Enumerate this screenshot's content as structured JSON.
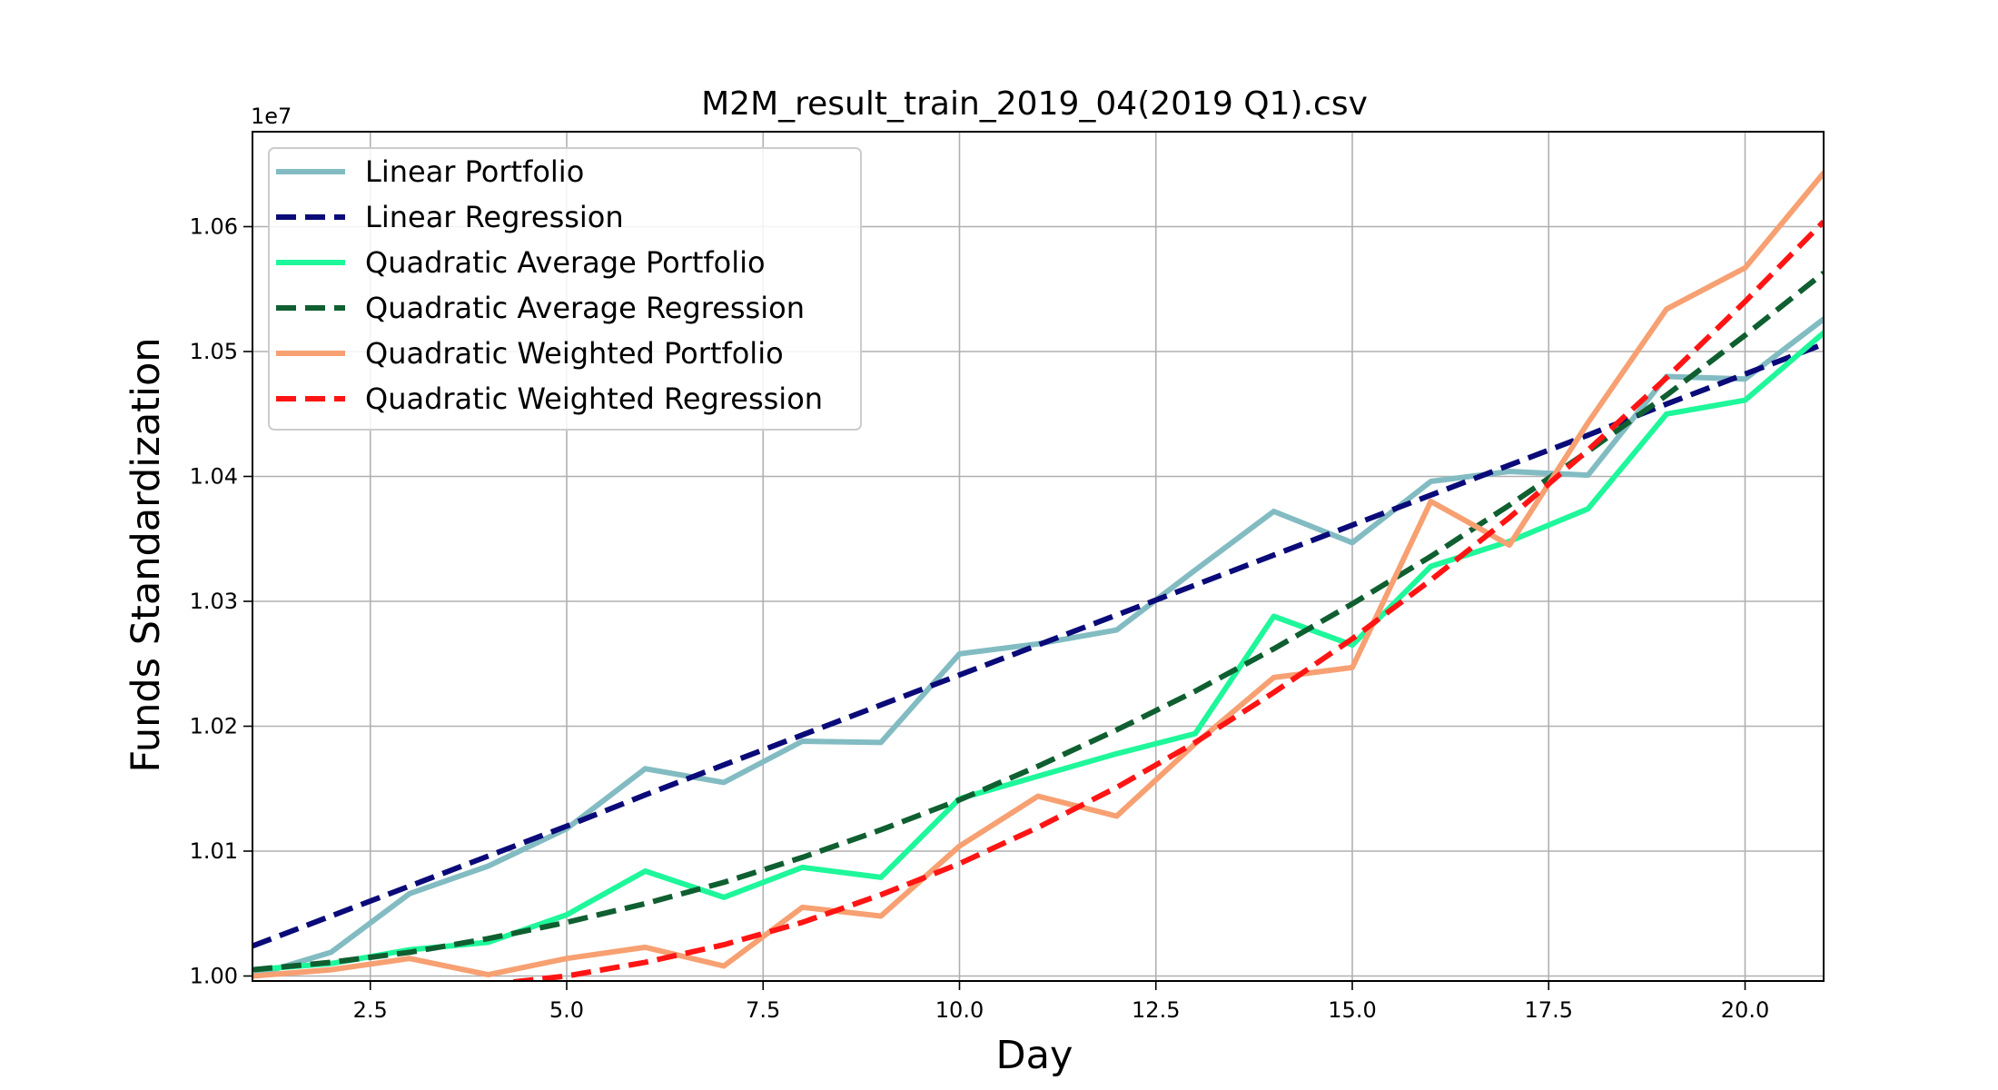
{
  "chart_data": {
    "type": "line",
    "title": "M2M_result_train_2019_04(2019 Q1).csv",
    "xlabel": "Day",
    "ylabel": "Funds Standardization",
    "y_offset_label": "1e7",
    "xlim": [
      1,
      21
    ],
    "ylim": [
      0.9996,
      1.0676
    ],
    "x_ticks": [
      2.5,
      5.0,
      7.5,
      10.0,
      12.5,
      15.0,
      17.5,
      20.0
    ],
    "x_tick_labels": [
      "2.5",
      "5.0",
      "7.5",
      "10.0",
      "12.5",
      "15.0",
      "17.5",
      "20.0"
    ],
    "y_ticks": [
      1.0,
      1.01,
      1.02,
      1.03,
      1.04,
      1.05,
      1.06
    ],
    "y_tick_labels": [
      "1.00",
      "1.01",
      "1.02",
      "1.03",
      "1.04",
      "1.05",
      "1.06"
    ],
    "grid": true,
    "legend_position": "top-left",
    "x": [
      1,
      2,
      3,
      4,
      5,
      6,
      7,
      8,
      9,
      10,
      11,
      12,
      13,
      14,
      15,
      16,
      17,
      18,
      19,
      20,
      21
    ],
    "series": [
      {
        "name": "Linear Portfolio",
        "color": "#82bcc2",
        "style": "solid",
        "values": [
          1.0,
          1.0019,
          1.0066,
          1.0088,
          1.0118,
          1.0166,
          1.0155,
          1.0188,
          1.0187,
          1.0258,
          1.0266,
          1.0277,
          1.0325,
          1.0372,
          1.0347,
          1.0396,
          1.0404,
          1.0401,
          1.048,
          1.0478,
          1.0526
        ]
      },
      {
        "name": "Linear Regression",
        "color": "#0a0a78",
        "style": "dashed",
        "values": [
          1.0024,
          1.0048,
          1.0072,
          1.0096,
          1.012,
          1.0145,
          1.0169,
          1.0193,
          1.0217,
          1.0241,
          1.0265,
          1.0289,
          1.0313,
          1.0337,
          1.0361,
          1.0385,
          1.0409,
          1.0433,
          1.0458,
          1.0482,
          1.0506
        ]
      },
      {
        "name": "Quadratic Average Portfolio",
        "color": "#1ef79a",
        "style": "solid",
        "values": [
          1.0005,
          1.001,
          1.0021,
          1.0027,
          1.0049,
          1.0084,
          1.0063,
          1.0087,
          1.0079,
          1.0142,
          1.016,
          1.0178,
          1.0194,
          1.0288,
          1.0265,
          1.0328,
          1.0348,
          1.0374,
          1.045,
          1.0461,
          1.0515
        ]
      },
      {
        "name": "Quadratic Average Regression",
        "color": "#0f5f30",
        "style": "dashed",
        "values": [
          1.0005,
          1.0011,
          1.0019,
          1.003,
          1.0043,
          1.0058,
          1.0075,
          1.0095,
          1.0117,
          1.0141,
          1.0168,
          1.0197,
          1.0228,
          1.0262,
          1.0298,
          1.0336,
          1.0377,
          1.042,
          1.0465,
          1.0513,
          1.0563
        ]
      },
      {
        "name": "Quadratic Weighted Portfolio",
        "color": "#f7a072",
        "style": "solid",
        "values": [
          1.0,
          1.0005,
          1.0014,
          1.0001,
          1.0014,
          1.0023,
          1.0008,
          1.0055,
          1.0048,
          1.0104,
          1.0144,
          1.0128,
          1.0186,
          1.0239,
          1.0247,
          1.038,
          1.0345,
          1.0443,
          1.0534,
          1.0567,
          1.0643
        ]
      },
      {
        "name": "Quadratic Weighted Regression",
        "color": "#ff1414",
        "style": "dashed",
        "values": [
          0.9993,
          0.9989,
          0.9989,
          0.9993,
          1.0,
          1.0011,
          1.0025,
          1.0043,
          1.0065,
          1.009,
          1.0119,
          1.0151,
          1.0187,
          1.0227,
          1.027,
          1.0317,
          1.0367,
          1.0421,
          1.0479,
          1.054,
          1.0604
        ]
      }
    ]
  }
}
